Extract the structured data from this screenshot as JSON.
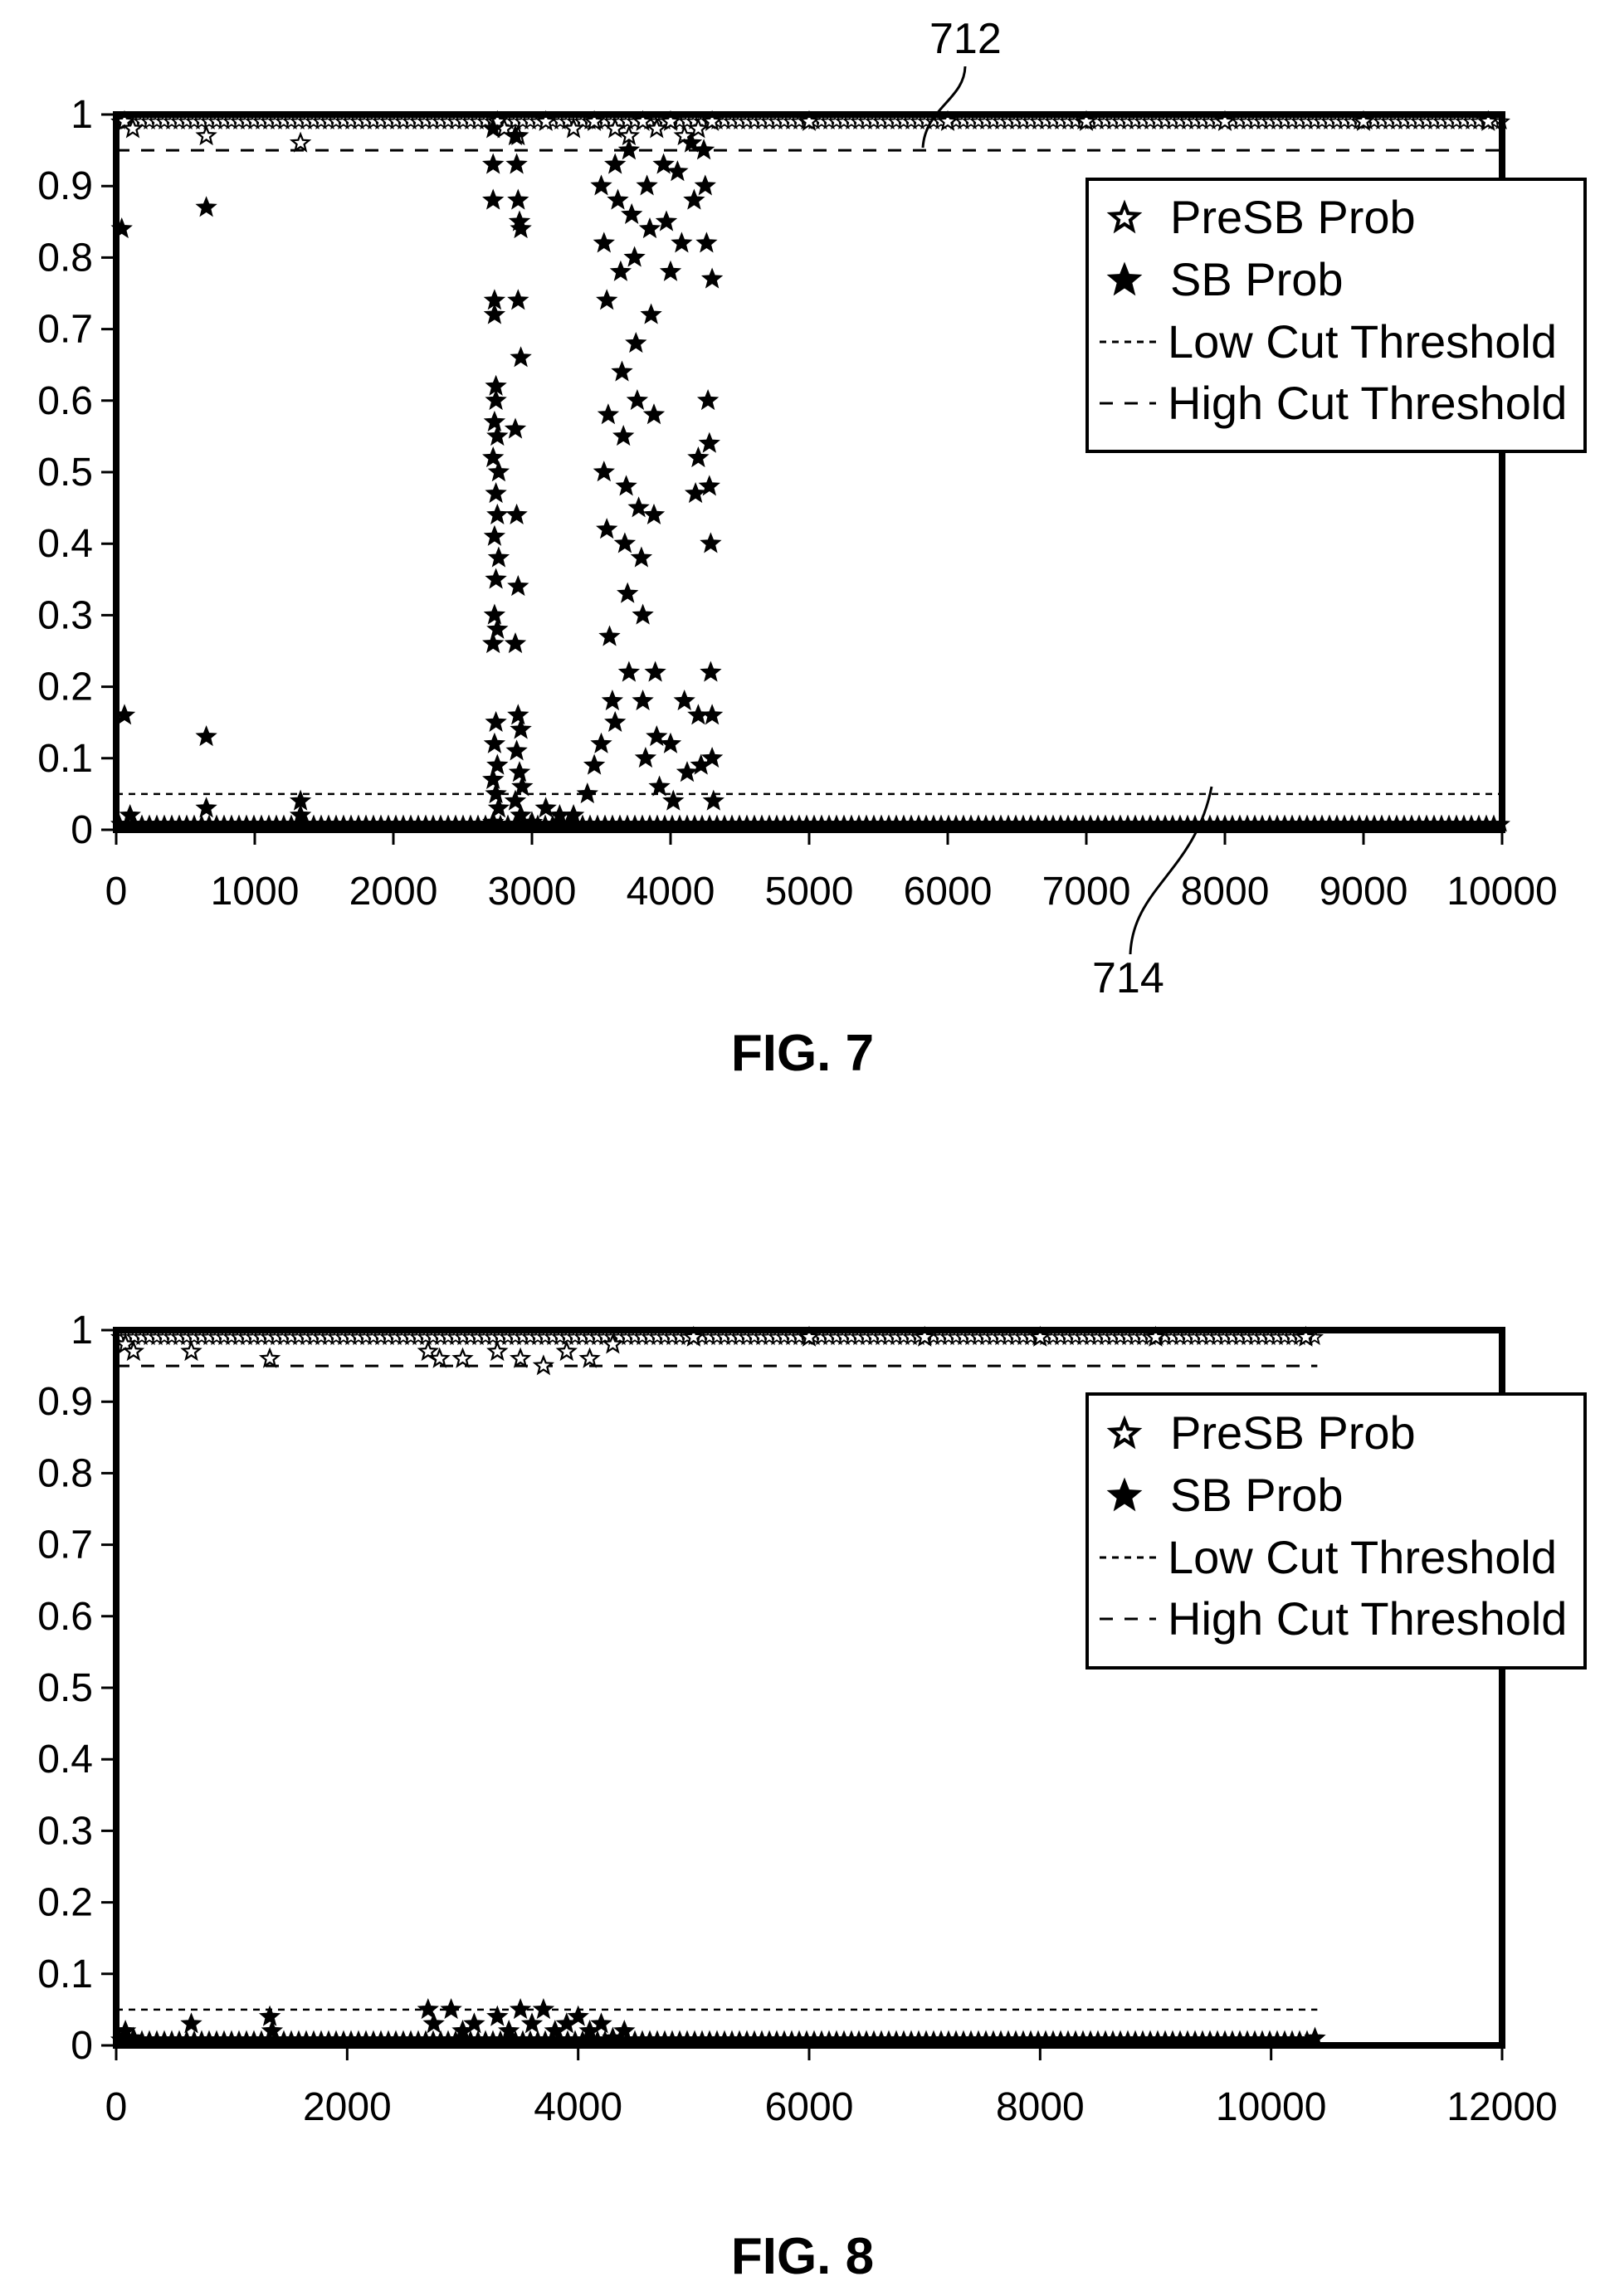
{
  "chart_data": [
    {
      "type": "scatter",
      "caption": "FIG. 7",
      "xlim": [
        0,
        10000
      ],
      "ylim": [
        0,
        1
      ],
      "xticks": [
        "0",
        "1000",
        "2000",
        "3000",
        "4000",
        "5000",
        "6000",
        "7000",
        "8000",
        "9000",
        "10000"
      ],
      "yticks": [
        "0",
        "0.1",
        "0.2",
        "0.3",
        "0.4",
        "0.5",
        "0.6",
        "0.7",
        "0.8",
        "0.9",
        "1"
      ],
      "grid": false,
      "legend_position": "top-right",
      "legend": [
        "PreSB Prob",
        "SB Prob",
        "Low Cut Threshold",
        "High Cut Threshold"
      ],
      "thresholds": {
        "low": 0.05,
        "high": 0.95
      },
      "threshold_extent": [
        0,
        10000
      ],
      "annotations": [
        {
          "label": "712",
          "target": "High Cut Threshold"
        },
        {
          "label": "714",
          "target": "Low Cut Threshold"
        }
      ],
      "series": [
        {
          "name": "PreSB Prob",
          "marker": "hollow-star",
          "points": [
            [
              60,
              0.99
            ],
            [
              120,
              0.98
            ],
            [
              650,
              0.97
            ],
            [
              1330,
              0.96
            ],
            [
              2750,
              0.99
            ],
            [
              2800,
              0.98
            ],
            [
              2900,
              0.97
            ],
            [
              3100,
              0.99
            ],
            [
              3300,
              0.98
            ],
            [
              3450,
              0.99
            ],
            [
              3600,
              0.98
            ],
            [
              3700,
              0.97
            ],
            [
              3800,
              0.99
            ],
            [
              3900,
              0.98
            ],
            [
              4000,
              0.99
            ],
            [
              4100,
              0.97
            ],
            [
              4200,
              0.98
            ],
            [
              4300,
              0.99
            ],
            [
              5000,
              0.99
            ],
            [
              6000,
              0.99
            ],
            [
              7000,
              0.99
            ],
            [
              8000,
              0.99
            ],
            [
              9000,
              0.99
            ],
            [
              9900,
              0.99
            ]
          ]
        },
        {
          "name": "SB Prob",
          "marker": "filled-star",
          "points": [
            [
              40,
              0.84
            ],
            [
              60,
              0.16
            ],
            [
              100,
              0.02
            ],
            [
              650,
              0.87
            ],
            [
              650,
              0.13
            ],
            [
              650,
              0.03
            ],
            [
              1330,
              0.04
            ],
            [
              1330,
              0.02
            ],
            [
              2720,
              0.98
            ],
            [
              2720,
              0.93
            ],
            [
              2720,
              0.88
            ],
            [
              2730,
              0.74
            ],
            [
              2730,
              0.72
            ],
            [
              2740,
              0.62
            ],
            [
              2740,
              0.6
            ],
            [
              2730,
              0.57
            ],
            [
              2750,
              0.55
            ],
            [
              2720,
              0.52
            ],
            [
              2760,
              0.5
            ],
            [
              2740,
              0.47
            ],
            [
              2750,
              0.44
            ],
            [
              2730,
              0.41
            ],
            [
              2760,
              0.38
            ],
            [
              2740,
              0.35
            ],
            [
              2730,
              0.3
            ],
            [
              2750,
              0.28
            ],
            [
              2720,
              0.26
            ],
            [
              2740,
              0.15
            ],
            [
              2730,
              0.12
            ],
            [
              2750,
              0.09
            ],
            [
              2720,
              0.07
            ],
            [
              2740,
              0.05
            ],
            [
              2760,
              0.03
            ],
            [
              2720,
              0.01
            ],
            [
              2880,
              0.97
            ],
            [
              2890,
              0.93
            ],
            [
              2900,
              0.88
            ],
            [
              2910,
              0.85
            ],
            [
              2920,
              0.84
            ],
            [
              2900,
              0.74
            ],
            [
              2920,
              0.66
            ],
            [
              2880,
              0.56
            ],
            [
              2890,
              0.44
            ],
            [
              2900,
              0.34
            ],
            [
              2880,
              0.26
            ],
            [
              2900,
              0.16
            ],
            [
              2920,
              0.14
            ],
            [
              2890,
              0.11
            ],
            [
              2910,
              0.08
            ],
            [
              2930,
              0.06
            ],
            [
              2880,
              0.04
            ],
            [
              2920,
              0.02
            ],
            [
              3000,
              0.01
            ],
            [
              3100,
              0.03
            ],
            [
              3200,
              0.02
            ],
            [
              3300,
              0.02
            ],
            [
              3400,
              0.05
            ],
            [
              3450,
              0.09
            ],
            [
              3500,
              0.12
            ],
            [
              3500,
              0.9
            ],
            [
              3520,
              0.82
            ],
            [
              3540,
              0.74
            ],
            [
              3550,
              0.58
            ],
            [
              3520,
              0.5
            ],
            [
              3540,
              0.42
            ],
            [
              3560,
              0.27
            ],
            [
              3580,
              0.18
            ],
            [
              3600,
              0.15
            ],
            [
              3600,
              0.93
            ],
            [
              3620,
              0.88
            ],
            [
              3640,
              0.78
            ],
            [
              3650,
              0.64
            ],
            [
              3660,
              0.55
            ],
            [
              3680,
              0.48
            ],
            [
              3670,
              0.4
            ],
            [
              3690,
              0.33
            ],
            [
              3700,
              0.22
            ],
            [
              3700,
              0.95
            ],
            [
              3720,
              0.86
            ],
            [
              3740,
              0.8
            ],
            [
              3750,
              0.68
            ],
            [
              3760,
              0.6
            ],
            [
              3770,
              0.45
            ],
            [
              3790,
              0.38
            ],
            [
              3800,
              0.3
            ],
            [
              3800,
              0.18
            ],
            [
              3820,
              0.1
            ],
            [
              3830,
              0.9
            ],
            [
              3850,
              0.84
            ],
            [
              3860,
              0.72
            ],
            [
              3880,
              0.58
            ],
            [
              3880,
              0.44
            ],
            [
              3890,
              0.22
            ],
            [
              3900,
              0.13
            ],
            [
              3920,
              0.06
            ],
            [
              3950,
              0.93
            ],
            [
              3970,
              0.85
            ],
            [
              4000,
              0.78
            ],
            [
              4000,
              0.12
            ],
            [
              4020,
              0.04
            ],
            [
              4050,
              0.92
            ],
            [
              4080,
              0.82
            ],
            [
              4100,
              0.18
            ],
            [
              4120,
              0.08
            ],
            [
              4150,
              0.96
            ],
            [
              4170,
              0.88
            ],
            [
              4180,
              0.47
            ],
            [
              4200,
              0.52
            ],
            [
              4200,
              0.16
            ],
            [
              4220,
              0.09
            ],
            [
              4240,
              0.95
            ],
            [
              4250,
              0.9
            ],
            [
              4260,
              0.82
            ],
            [
              4270,
              0.6
            ],
            [
              4280,
              0.54
            ],
            [
              4280,
              0.48
            ],
            [
              4290,
              0.4
            ],
            [
              4290,
              0.22
            ],
            [
              4300,
              0.16
            ],
            [
              4300,
              0.1
            ],
            [
              4300,
              0.77
            ],
            [
              4310,
              0.04
            ]
          ]
        }
      ]
    },
    {
      "type": "scatter",
      "caption": "FIG. 8",
      "xlim": [
        0,
        12000
      ],
      "ylim": [
        0,
        1
      ],
      "xticks": [
        "0",
        "2000",
        "4000",
        "6000",
        "8000",
        "10000",
        "12000"
      ],
      "yticks": [
        "0",
        "0.1",
        "0.2",
        "0.3",
        "0.4",
        "0.5",
        "0.6",
        "0.7",
        "0.8",
        "0.9",
        "1"
      ],
      "grid": false,
      "legend_position": "top-right",
      "legend": [
        "PreSB Prob",
        "SB Prob",
        "Low Cut Threshold",
        "High Cut Threshold"
      ],
      "thresholds": {
        "low": 0.05,
        "high": 0.95
      },
      "threshold_extent": [
        0,
        10400
      ],
      "annotations": [],
      "series": [
        {
          "name": "PreSB Prob",
          "marker": "hollow-star",
          "points": [
            [
              80,
              0.98
            ],
            [
              150,
              0.97
            ],
            [
              650,
              0.97
            ],
            [
              1330,
              0.96
            ],
            [
              2700,
              0.97
            ],
            [
              2800,
              0.96
            ],
            [
              3000,
              0.96
            ],
            [
              3300,
              0.97
            ],
            [
              3500,
              0.96
            ],
            [
              3700,
              0.95
            ],
            [
              3900,
              0.97
            ],
            [
              4100,
              0.96
            ],
            [
              4300,
              0.98
            ],
            [
              5000,
              0.99
            ],
            [
              6000,
              0.99
            ],
            [
              7000,
              0.99
            ],
            [
              8000,
              0.99
            ],
            [
              9000,
              0.99
            ],
            [
              10300,
              0.99
            ]
          ]
        },
        {
          "name": "SB Prob",
          "marker": "filled-star",
          "points": [
            [
              80,
              0.02
            ],
            [
              150,
              0.01
            ],
            [
              650,
              0.03
            ],
            [
              1330,
              0.04
            ],
            [
              1350,
              0.02
            ],
            [
              2700,
              0.05
            ],
            [
              2750,
              0.03
            ],
            [
              2900,
              0.05
            ],
            [
              3000,
              0.02
            ],
            [
              3100,
              0.03
            ],
            [
              3300,
              0.04
            ],
            [
              3400,
              0.02
            ],
            [
              3500,
              0.05
            ],
            [
              3600,
              0.03
            ],
            [
              3700,
              0.05
            ],
            [
              3800,
              0.02
            ],
            [
              3900,
              0.03
            ],
            [
              4000,
              0.04
            ],
            [
              4100,
              0.02
            ],
            [
              4200,
              0.03
            ],
            [
              4300,
              0.01
            ],
            [
              4400,
              0.02
            ],
            [
              10380,
              0.01
            ]
          ]
        }
      ]
    }
  ]
}
